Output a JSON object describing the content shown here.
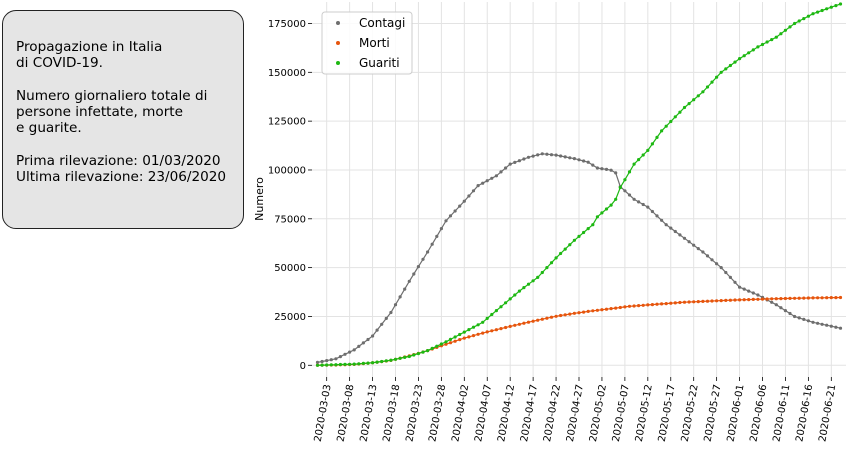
{
  "info_box": {
    "title": "Propagazione in Italia\ndi COVID-19.",
    "description": "Numero giornaliero totale di\npersone infettate, morte\ne guarite.",
    "dates": "Prima rilevazione: 01/03/2020\nUltima rilevazione: 23/06/2020"
  },
  "chart_data": {
    "type": "scatter",
    "title": "",
    "xlabel": "",
    "ylabel": "Numero",
    "x_start": "2020-03-01",
    "x_end": "2020-06-23",
    "x_ticks": [
      "2020-03-03",
      "2020-03-08",
      "2020-03-13",
      "2020-03-18",
      "2020-03-23",
      "2020-03-28",
      "2020-04-02",
      "2020-04-07",
      "2020-04-12",
      "2020-04-17",
      "2020-04-22",
      "2020-04-27",
      "2020-05-02",
      "2020-05-07",
      "2020-05-12",
      "2020-05-17",
      "2020-05-22",
      "2020-05-27",
      "2020-06-01",
      "2020-06-06",
      "2020-06-11",
      "2020-06-16",
      "2020-06-21"
    ],
    "y_ticks": [
      0,
      25000,
      50000,
      75000,
      100000,
      125000,
      150000,
      175000
    ],
    "ylim": [
      -6000,
      186000
    ],
    "grid": true,
    "legend_position": "top-left",
    "series": [
      {
        "name": "Contagi",
        "color": "#6e6e6e",
        "keypoints": [
          [
            "2020-03-01",
            1500
          ],
          [
            "2020-03-05",
            3300
          ],
          [
            "2020-03-09",
            7900
          ],
          [
            "2020-03-13",
            15000
          ],
          [
            "2020-03-17",
            27000
          ],
          [
            "2020-03-21",
            43000
          ],
          [
            "2020-03-25",
            58000
          ],
          [
            "2020-03-29",
            74000
          ],
          [
            "2020-04-02",
            84000
          ],
          [
            "2020-04-05",
            92000
          ],
          [
            "2020-04-09",
            97000
          ],
          [
            "2020-04-12",
            103000
          ],
          [
            "2020-04-16",
            106500
          ],
          [
            "2020-04-19",
            108300
          ],
          [
            "2020-04-22",
            107600
          ],
          [
            "2020-04-26",
            105800
          ],
          [
            "2020-04-29",
            104000
          ],
          [
            "2020-05-01",
            101000
          ],
          [
            "2020-05-04",
            99900
          ],
          [
            "2020-05-05",
            98500
          ],
          [
            "2020-05-06",
            91500
          ],
          [
            "2020-05-09",
            85000
          ],
          [
            "2020-05-12",
            81000
          ],
          [
            "2020-05-16",
            72000
          ],
          [
            "2020-05-20",
            65000
          ],
          [
            "2020-05-24",
            58000
          ],
          [
            "2020-05-28",
            50000
          ],
          [
            "2020-06-01",
            40000
          ],
          [
            "2020-06-05",
            36000
          ],
          [
            "2020-06-09",
            31000
          ],
          [
            "2020-06-13",
            25000
          ],
          [
            "2020-06-17",
            22000
          ],
          [
            "2020-06-23",
            19000
          ]
        ]
      },
      {
        "name": "Morti",
        "color": "#e6550d",
        "keypoints": [
          [
            "2020-03-01",
            50
          ],
          [
            "2020-03-05",
            150
          ],
          [
            "2020-03-09",
            450
          ],
          [
            "2020-03-13",
            1300
          ],
          [
            "2020-03-17",
            2500
          ],
          [
            "2020-03-21",
            4800
          ],
          [
            "2020-03-25",
            7500
          ],
          [
            "2020-03-29",
            10800
          ],
          [
            "2020-04-02",
            13900
          ],
          [
            "2020-04-06",
            16500
          ],
          [
            "2020-04-10",
            18800
          ],
          [
            "2020-04-14",
            21000
          ],
          [
            "2020-04-18",
            23100
          ],
          [
            "2020-04-22",
            25100
          ],
          [
            "2020-04-26",
            26600
          ],
          [
            "2020-04-30",
            27900
          ],
          [
            "2020-05-04",
            29000
          ],
          [
            "2020-05-08",
            30200
          ],
          [
            "2020-05-12",
            30900
          ],
          [
            "2020-05-16",
            31600
          ],
          [
            "2020-05-20",
            32300
          ],
          [
            "2020-05-24",
            32700
          ],
          [
            "2020-05-28",
            33100
          ],
          [
            "2020-06-01",
            33500
          ],
          [
            "2020-06-05",
            33800
          ],
          [
            "2020-06-09",
            34100
          ],
          [
            "2020-06-13",
            34300
          ],
          [
            "2020-06-17",
            34500
          ],
          [
            "2020-06-23",
            34700
          ]
        ]
      },
      {
        "name": "Guariti",
        "color": "#1db812",
        "keypoints": [
          [
            "2020-03-01",
            0
          ],
          [
            "2020-03-09",
            600
          ],
          [
            "2020-03-13",
            1300
          ],
          [
            "2020-03-17",
            2600
          ],
          [
            "2020-03-21",
            4500
          ],
          [
            "2020-03-25",
            7500
          ],
          [
            "2020-03-29",
            12000
          ],
          [
            "2020-04-02",
            17000
          ],
          [
            "2020-04-06",
            22000
          ],
          [
            "2020-04-10",
            30000
          ],
          [
            "2020-04-14",
            38000
          ],
          [
            "2020-04-18",
            45000
          ],
          [
            "2020-04-22",
            55000
          ],
          [
            "2020-04-26",
            64000
          ],
          [
            "2020-04-30",
            72000
          ],
          [
            "2020-05-01",
            76000
          ],
          [
            "2020-05-04",
            82000
          ],
          [
            "2020-05-05",
            85000
          ],
          [
            "2020-05-06",
            91000
          ],
          [
            "2020-05-09",
            103000
          ],
          [
            "2020-05-12",
            110000
          ],
          [
            "2020-05-15",
            120000
          ],
          [
            "2020-05-20",
            132000
          ],
          [
            "2020-05-24",
            140000
          ],
          [
            "2020-05-28",
            150000
          ],
          [
            "2020-06-01",
            157000
          ],
          [
            "2020-06-05",
            163000
          ],
          [
            "2020-06-09",
            168000
          ],
          [
            "2020-06-13",
            175000
          ],
          [
            "2020-06-17",
            180000
          ],
          [
            "2020-06-23",
            185000
          ]
        ]
      }
    ]
  }
}
